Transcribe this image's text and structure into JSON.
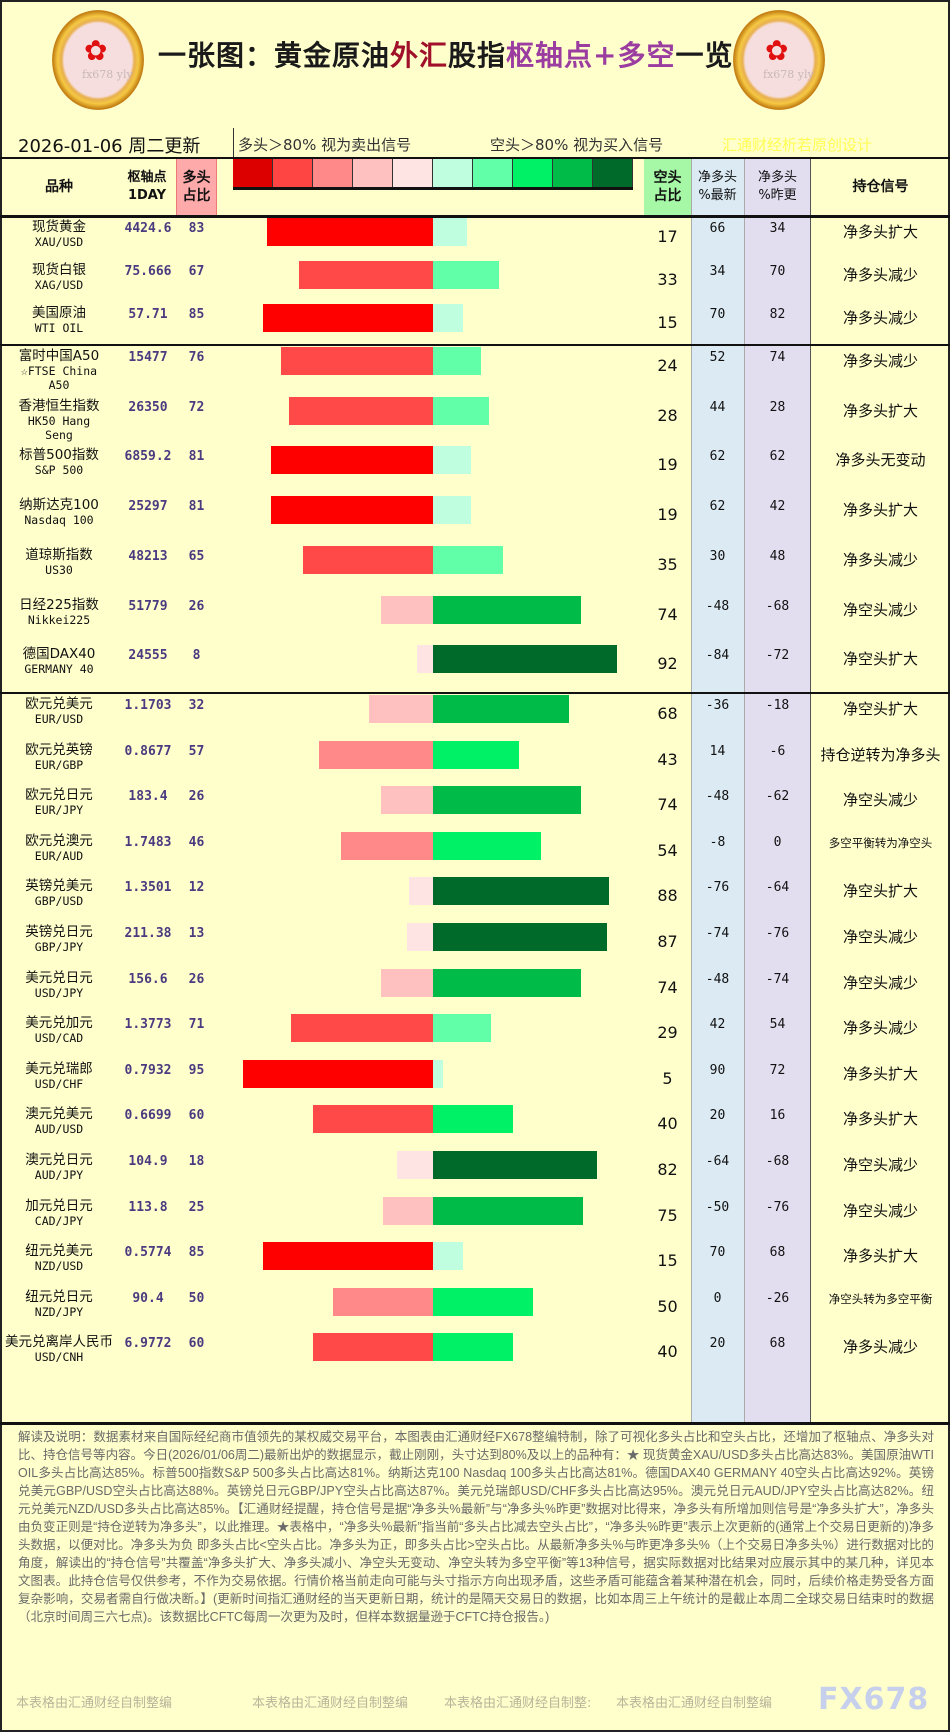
{
  "header": {
    "title_parts": [
      {
        "text": "一张图：黄金原油",
        "color": "#1a1a1a"
      },
      {
        "text": "外汇",
        "color": "#a0102a"
      },
      {
        "text": "股指",
        "color": "#1a1a1a"
      },
      {
        "text": "枢轴点+多空",
        "color": "#9a3ca0"
      },
      {
        "text": "一览",
        "color": "#1a1a1a"
      }
    ],
    "logo_watermark": "fx678 yly",
    "date": "2026-01-06 周二更新",
    "legend_long": "多头＞80% 视为卖出信号",
    "legend_short": "空头＞80% 视为买入信号",
    "designer": "汇通财经析若原创设计"
  },
  "legend_colors": [
    "#dd0000",
    "#ff4444",
    "#ff8888",
    "#ffc0c0",
    "#ffe4e4",
    "#bfffe0",
    "#60ffa8",
    "#00f066",
    "#00bb48",
    "#006a2a"
  ],
  "columns": {
    "name": "品种",
    "pivot": "枢轴点\n1DAY",
    "long": "多头\n占比",
    "short": "空头\n占比",
    "net_latest": "净多头\n%最新",
    "net_prev": "净多头\n%昨更",
    "signal": "持仓信号"
  },
  "rows": [
    {
      "name": "现货黄金",
      "code": "XAU/USD",
      "pivot": "4424.6",
      "long": 83,
      "short": 17,
      "net_latest": 66,
      "net_prev": 34,
      "signal": "净多头扩大",
      "group": 1
    },
    {
      "name": "现货白银",
      "code": "XAG/USD",
      "pivot": "75.666",
      "long": 67,
      "short": 33,
      "net_latest": 34,
      "net_prev": 70,
      "signal": "净多头减少",
      "group": 1
    },
    {
      "name": "美国原油",
      "code": "WTI OIL",
      "pivot": "57.71",
      "long": 85,
      "short": 15,
      "net_latest": 70,
      "net_prev": 82,
      "signal": "净多头减少",
      "group": 1
    },
    {
      "name": "富时中国A50",
      "code": "☆FTSE China\nA50",
      "pivot": "15477",
      "long": 76,
      "short": 24,
      "net_latest": 52,
      "net_prev": 74,
      "signal": "净多头减少",
      "group": 2
    },
    {
      "name": "香港恒生指数",
      "code": "HK50 Hang\nSeng",
      "pivot": "26350",
      "long": 72,
      "short": 28,
      "net_latest": 44,
      "net_prev": 28,
      "signal": "净多头扩大",
      "group": 2
    },
    {
      "name": "标普500指数",
      "code": "S&P 500",
      "pivot": "6859.2",
      "long": 81,
      "short": 19,
      "net_latest": 62,
      "net_prev": 62,
      "signal": "净多头无变动",
      "group": 2
    },
    {
      "name": "纳斯达克100",
      "code": "Nasdaq 100",
      "pivot": "25297",
      "long": 81,
      "short": 19,
      "net_latest": 62,
      "net_prev": 42,
      "signal": "净多头扩大",
      "group": 2
    },
    {
      "name": "道琼斯指数",
      "code": "US30",
      "pivot": "48213",
      "long": 65,
      "short": 35,
      "net_latest": 30,
      "net_prev": 48,
      "signal": "净多头减少",
      "group": 2
    },
    {
      "name": "日经225指数",
      "code": "Nikkei225",
      "pivot": "51779",
      "long": 26,
      "short": 74,
      "net_latest": -48,
      "net_prev": -68,
      "signal": "净空头减少",
      "group": 2
    },
    {
      "name": "德国DAX40",
      "code": "GERMANY 40",
      "pivot": "24555",
      "long": 8,
      "short": 92,
      "net_latest": -84,
      "net_prev": -72,
      "signal": "净空头扩大",
      "group": 2
    },
    {
      "name": "欧元兑美元",
      "code": "EUR/USD",
      "pivot": "1.1703",
      "long": 32,
      "short": 68,
      "net_latest": -36,
      "net_prev": -18,
      "signal": "净空头扩大",
      "group": 3
    },
    {
      "name": "欧元兑英镑",
      "code": "EUR/GBP",
      "pivot": "0.8677",
      "long": 57,
      "short": 43,
      "net_latest": 14,
      "net_prev": -6,
      "signal": "持仓逆转为净多头",
      "group": 3
    },
    {
      "name": "欧元兑日元",
      "code": "EUR/JPY",
      "pivot": "183.4",
      "long": 26,
      "short": 74,
      "net_latest": -48,
      "net_prev": -62,
      "signal": "净空头减少",
      "group": 3
    },
    {
      "name": "欧元兑澳元",
      "code": "EUR/AUD",
      "pivot": "1.7483",
      "long": 46,
      "short": 54,
      "net_latest": -8,
      "net_prev": 0,
      "signal": "多空平衡转为净空头",
      "group": 3
    },
    {
      "name": "英镑兑美元",
      "code": "GBP/USD",
      "pivot": "1.3501",
      "long": 12,
      "short": 88,
      "net_latest": -76,
      "net_prev": -64,
      "signal": "净空头扩大",
      "group": 3
    },
    {
      "name": "英镑兑日元",
      "code": "GBP/JPY",
      "pivot": "211.38",
      "long": 13,
      "short": 87,
      "net_latest": -74,
      "net_prev": -76,
      "signal": "净空头减少",
      "group": 3
    },
    {
      "name": "美元兑日元",
      "code": "USD/JPY",
      "pivot": "156.6",
      "long": 26,
      "short": 74,
      "net_latest": -48,
      "net_prev": -74,
      "signal": "净空头减少",
      "group": 3
    },
    {
      "name": "美元兑加元",
      "code": "USD/CAD",
      "pivot": "1.3773",
      "long": 71,
      "short": 29,
      "net_latest": 42,
      "net_prev": 54,
      "signal": "净多头减少",
      "group": 3
    },
    {
      "name": "美元兑瑞郎",
      "code": "USD/CHF",
      "pivot": "0.7932",
      "long": 95,
      "short": 5,
      "net_latest": 90,
      "net_prev": 72,
      "signal": "净多头扩大",
      "group": 3
    },
    {
      "name": "澳元兑美元",
      "code": "AUD/USD",
      "pivot": "0.6699",
      "long": 60,
      "short": 40,
      "net_latest": 20,
      "net_prev": 16,
      "signal": "净多头扩大",
      "group": 3
    },
    {
      "name": "澳元兑日元",
      "code": "AUD/JPY",
      "pivot": "104.9",
      "long": 18,
      "short": 82,
      "net_latest": -64,
      "net_prev": -68,
      "signal": "净空头减少",
      "group": 3
    },
    {
      "name": "加元兑日元",
      "code": "CAD/JPY",
      "pivot": "113.8",
      "long": 25,
      "short": 75,
      "net_latest": -50,
      "net_prev": -76,
      "signal": "净空头减少",
      "group": 3
    },
    {
      "name": "纽元兑美元",
      "code": "NZD/USD",
      "pivot": "0.5774",
      "long": 85,
      "short": 15,
      "net_latest": 70,
      "net_prev": 68,
      "signal": "净多头扩大",
      "group": 3
    },
    {
      "name": "纽元兑日元",
      "code": "NZD/JPY",
      "pivot": "90.4",
      "long": 50,
      "short": 50,
      "net_latest": 0,
      "net_prev": -26,
      "signal": "净空头转为多空平衡",
      "group": 3
    },
    {
      "name": "美元兑离岸人民币",
      "code": "USD/CNH",
      "pivot": "6.9772",
      "long": 60,
      "short": 40,
      "net_latest": 20,
      "net_prev": 68,
      "signal": "净多头减少",
      "group": 3
    }
  ],
  "notes": "解读及说明：数据素材来自国际经纪商市值领先的某权威交易平台，本图表由汇通财经FX678整编特制，除了可视化多头占比和空头占比，还增加了枢轴点、净多头对比、持仓信号等内容。今日(2026/01/06周二)最新出炉的数据显示，截止刚刚，头寸达到80%及以上的品种有：★ 现货黄金XAU/USD多头占比高达83%。美国原油WTI OIL多头占比高达85%。标普500指数S&P 500多头占比高达81%。纳斯达克100 Nasdaq 100多头占比高达81%。德国DAX40 GERMANY 40空头占比高达92%。英镑兑美元GBP/USD空头占比高达88%。英镑兑日元GBP/JPY空头占比高达87%。美元兑瑞郎USD/CHF多头占比高达95%。澳元兑日元AUD/JPY空头占比高达82%。纽元兑美元NZD/USD多头占比高达85%。【汇通财经提醒，持仓信号是据“净多头%最新”与“净多头%昨更”数据对比得来，净多头有所增加则信号是“净多头扩大”，净多头由负变正则是“持仓逆转为净多头”，以此推理。★表格中，“净多头%最新”指当前“多头占比减去空头占比”，“净多头%昨更”表示上次更新的(通常上个交易日更新的)净多头数据，以便对比。净多头为负 即多头占比<空头占比。净多头为正，即多头占比>空头占比。从最新净多头%与昨更净多头%（上个交易日净多头%）进行数据对比的角度，解读出的“持仓信号”共覆盖“净多头扩大、净多头减小、净空头无变动、净空头转为多空平衡”等13种信号，据实际数据对比结果对应展示其中的某几种，详见本文图表。此持仓信号仅供参考，不作为交易依据。行情价格当前走向可能与头寸指示方向出现矛盾，这些矛盾可能蕴含着某种潜在机会，同时，后续价格走势受各方面复杂影响，交易者需自行做决断。】(更新时间指汇通财经的当天更新日期，统计的是隔天交易日的数据，比如本周三上午统计的是截止本周二全球交易日结束时的数据（北京时间周三六七点)。该数据比CFTC每周一次更为及时，但样本数据量逊于CFTC持仓报告。)",
  "credits": [
    "本表格由汇通财经自制整编",
    "本表格由汇通财经自制整编",
    "本表格由汇通财经自制整:",
    "本表格由汇通财经自制整编"
  ],
  "brand": "FX678"
}
